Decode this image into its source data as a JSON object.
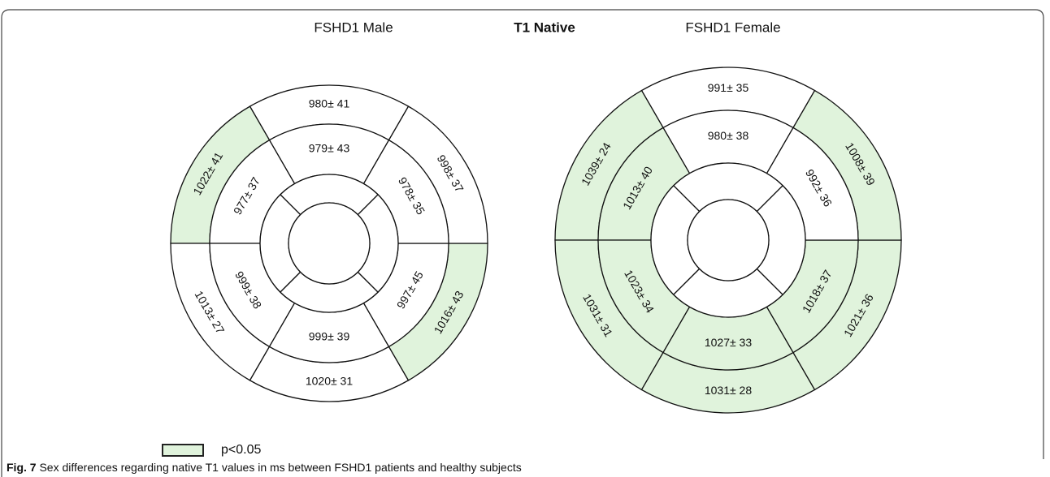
{
  "header": {
    "left_title": "FSHD1 Male",
    "title": "T1 Native",
    "right_title": "FSHD1 Female"
  },
  "plots": [
    {
      "basal": [
        {
          "label": "980± 41",
          "highlight": false
        },
        {
          "label": "1022± 41",
          "highlight": true
        },
        {
          "label": "1013± 27",
          "highlight": false
        },
        {
          "label": "1020± 31",
          "highlight": false
        },
        {
          "label": "1016± 43",
          "highlight": true
        },
        {
          "label": "998± 37",
          "highlight": false
        }
      ],
      "mid": [
        {
          "label": "979± 43",
          "highlight": false
        },
        {
          "label": "977± 37",
          "highlight": false
        },
        {
          "label": "999± 38",
          "highlight": false
        },
        {
          "label": "999± 39",
          "highlight": false
        },
        {
          "label": "997± 45",
          "highlight": false
        },
        {
          "label": "978± 35",
          "highlight": false
        }
      ]
    },
    {
      "basal": [
        {
          "label": "991± 35",
          "highlight": false
        },
        {
          "label": "1039± 24",
          "highlight": true
        },
        {
          "label": "1031± 31",
          "highlight": true
        },
        {
          "label": "1031± 28",
          "highlight": true
        },
        {
          "label": "1021± 36",
          "highlight": true
        },
        {
          "label": "1008± 39",
          "highlight": true
        }
      ],
      "mid": [
        {
          "label": "980± 38",
          "highlight": false
        },
        {
          "label": "1013± 40",
          "highlight": true
        },
        {
          "label": "1023± 34",
          "highlight": true
        },
        {
          "label": "1027± 33",
          "highlight": true
        },
        {
          "label": "1018± 37",
          "highlight": true
        },
        {
          "label": "992± 36",
          "highlight": false
        }
      ]
    }
  ],
  "legend": {
    "label": "p<0.05",
    "color": "#e0f3dc"
  },
  "caption": {
    "prefix": "Fig. 7",
    "text": "Sex differences regarding native T1 values in ms between FSHD1 patients and healthy subjects"
  }
}
